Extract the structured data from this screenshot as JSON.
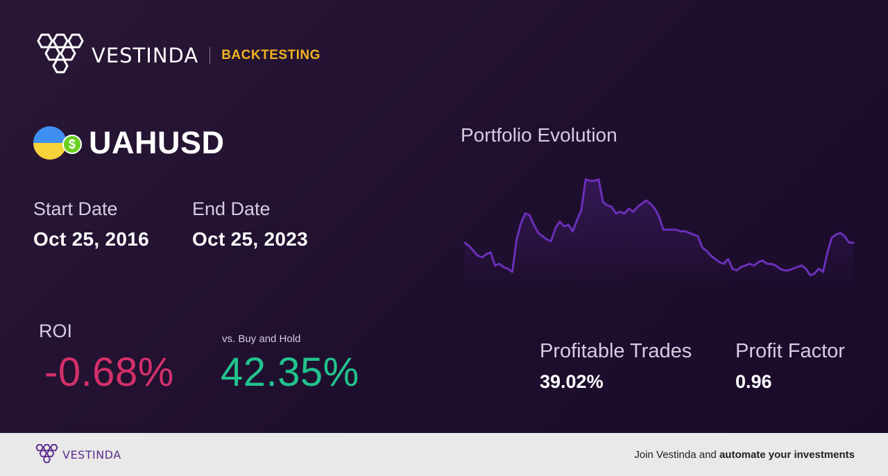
{
  "header": {
    "brand_name": "VESTINDA",
    "product": "BACKTESTING",
    "logo_icon": "vestinda-hexagon-logo"
  },
  "asset": {
    "ticker": "UAHUSD",
    "icons": [
      "ukraine-flag-icon",
      "dollar-coin-icon"
    ],
    "coin_symbol": "$"
  },
  "dates": {
    "start_label": "Start Date",
    "start_value": "Oct 25, 2016",
    "end_label": "End Date",
    "end_value": "Oct 25, 2023"
  },
  "roi": {
    "label": "ROI",
    "value": "-0.68%",
    "bh_label": "vs. Buy and Hold",
    "bh_value": "42.35%"
  },
  "chart_data": {
    "type": "line",
    "title": "Portfolio Evolution",
    "xlabel": "",
    "ylabel": "",
    "grid": false,
    "line_color": "#6b2fb8",
    "x": [
      0,
      1,
      2,
      3,
      4,
      5,
      6,
      7,
      8,
      9,
      10,
      11,
      12,
      13,
      14,
      15,
      16,
      17,
      18,
      19,
      20,
      21,
      22,
      23,
      24,
      25,
      26,
      27,
      28,
      29,
      30,
      31,
      32,
      33,
      34,
      35,
      36,
      37,
      38,
      39,
      40,
      41,
      42,
      43,
      44,
      45,
      46,
      47,
      48,
      49,
      50,
      51,
      52,
      53,
      54,
      55,
      56,
      57,
      58,
      59,
      60,
      61,
      62,
      63,
      64,
      65,
      66,
      67,
      68,
      69,
      70,
      71,
      72,
      73,
      74,
      75,
      76,
      77,
      78,
      79,
      80,
      81,
      82,
      83,
      84,
      85,
      86,
      87,
      88,
      89,
      90
    ],
    "values": [
      54,
      52,
      49,
      46,
      45,
      47,
      48,
      40,
      41,
      39,
      38,
      36,
      56,
      66,
      72,
      71,
      65,
      60,
      58,
      56,
      55,
      63,
      67,
      64,
      65,
      61,
      68,
      74,
      93,
      92,
      92,
      93,
      79,
      77,
      76,
      72,
      73,
      72,
      75,
      73,
      76,
      78,
      80,
      78,
      75,
      70,
      62,
      62,
      62,
      62,
      61,
      61,
      60,
      59,
      58,
      51,
      49,
      46,
      44,
      42,
      41,
      44,
      38,
      37,
      39,
      40,
      41,
      40,
      42,
      43,
      41,
      41,
      40,
      38,
      37,
      37,
      38,
      39,
      40,
      38,
      34,
      35,
      38,
      36,
      48,
      57,
      59,
      60,
      58,
      54,
      54
    ],
    "ylim": [
      30,
      100
    ]
  },
  "stats": {
    "profitable_label": "Profitable Trades",
    "profitable_value": "39.02%",
    "pf_label": "Profit Factor",
    "pf_value": "0.96"
  },
  "footer": {
    "brand_name": "VESTINDA",
    "cta_prefix": "Join Vestinda and ",
    "cta_bold": "automate your investments"
  },
  "colors": {
    "accent": "#f0b323",
    "negative": "#d4306a",
    "positive": "#22c38e",
    "chart_line": "#6b2fb8"
  }
}
